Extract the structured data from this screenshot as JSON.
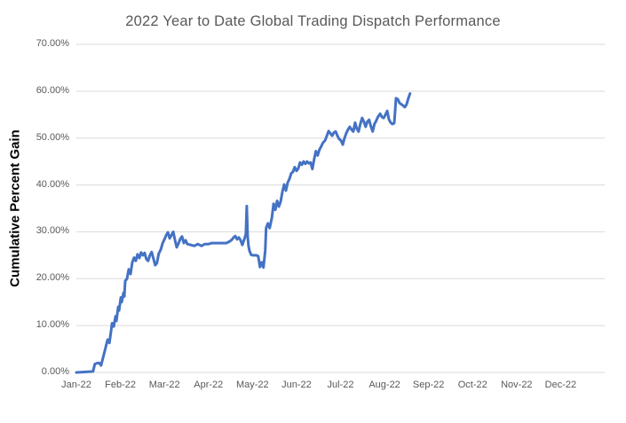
{
  "chart_data": {
    "type": "line",
    "title": "2022 Year to Date Global Trading Dispatch Performance",
    "xlabel": "",
    "ylabel": "Cumulative Percent Gain",
    "x_tick_labels": [
      "Jan-22",
      "Feb-22",
      "Mar-22",
      "Apr-22",
      "May-22",
      "Jun-22",
      "Jul-22",
      "Aug-22",
      "Sep-22",
      "Oct-22",
      "Nov-22",
      "Dec-22"
    ],
    "y_tick_labels": [
      "0.00%",
      "10.00%",
      "20.00%",
      "30.00%",
      "40.00%",
      "50.00%",
      "60.00%",
      "70.00%"
    ],
    "ylim": [
      0,
      70
    ],
    "xlim": [
      0,
      12
    ],
    "x_unit": "months since 2022-01-01 (0 = Jan-22 tick, 1 = Feb-22 tick)",
    "y_unit": "cumulative percent gain",
    "grid": "horizontal",
    "legend": "none",
    "colors": {
      "line": "#4472C4",
      "gridline": "#D9D9D9",
      "title": "#595959",
      "tick_labels": "#595959",
      "axis_title": "#000000",
      "background": "#FFFFFF"
    },
    "series": [
      {
        "name": "Cumulative Percent Gain",
        "points": [
          [
            0.0,
            0.0
          ],
          [
            0.38,
            0.2
          ],
          [
            0.42,
            1.8
          ],
          [
            0.48,
            2.0
          ],
          [
            0.52,
            2.0
          ],
          [
            0.56,
            1.5
          ],
          [
            0.63,
            4.0
          ],
          [
            0.67,
            5.5
          ],
          [
            0.71,
            7.0
          ],
          [
            0.75,
            6.3
          ],
          [
            0.79,
            9.0
          ],
          [
            0.81,
            10.5
          ],
          [
            0.85,
            9.8
          ],
          [
            0.89,
            12.0
          ],
          [
            0.91,
            11.0
          ],
          [
            0.95,
            14.0
          ],
          [
            0.97,
            13.2
          ],
          [
            1.01,
            16.0
          ],
          [
            1.03,
            15.0
          ],
          [
            1.07,
            17.0
          ],
          [
            1.09,
            16.2
          ],
          [
            1.11,
            19.5
          ],
          [
            1.15,
            20.0
          ],
          [
            1.19,
            22.0
          ],
          [
            1.23,
            21.0
          ],
          [
            1.27,
            23.5
          ],
          [
            1.31,
            24.5
          ],
          [
            1.35,
            23.8
          ],
          [
            1.39,
            25.2
          ],
          [
            1.43,
            24.4
          ],
          [
            1.47,
            25.6
          ],
          [
            1.51,
            25.0
          ],
          [
            1.55,
            25.5
          ],
          [
            1.59,
            24.2
          ],
          [
            1.63,
            23.8
          ],
          [
            1.67,
            25.0
          ],
          [
            1.71,
            25.7
          ],
          [
            1.75,
            24.3
          ],
          [
            1.79,
            22.9
          ],
          [
            1.83,
            23.3
          ],
          [
            1.87,
            25.3
          ],
          [
            1.92,
            26.3
          ],
          [
            1.96,
            27.6
          ],
          [
            2.0,
            28.4
          ],
          [
            2.04,
            29.3
          ],
          [
            2.08,
            29.9
          ],
          [
            2.12,
            28.6
          ],
          [
            2.16,
            29.3
          ],
          [
            2.2,
            30.0
          ],
          [
            2.24,
            28.2
          ],
          [
            2.28,
            26.7
          ],
          [
            2.32,
            27.5
          ],
          [
            2.36,
            28.5
          ],
          [
            2.4,
            29.0
          ],
          [
            2.44,
            27.6
          ],
          [
            2.48,
            28.2
          ],
          [
            2.52,
            27.4
          ],
          [
            2.6,
            27.2
          ],
          [
            2.68,
            27.0
          ],
          [
            2.76,
            27.4
          ],
          [
            2.84,
            27.0
          ],
          [
            2.92,
            27.4
          ],
          [
            3.0,
            27.4
          ],
          [
            3.08,
            27.6
          ],
          [
            3.17,
            27.6
          ],
          [
            3.25,
            27.6
          ],
          [
            3.33,
            27.6
          ],
          [
            3.41,
            27.6
          ],
          [
            3.49,
            28.0
          ],
          [
            3.53,
            28.3
          ],
          [
            3.57,
            28.8
          ],
          [
            3.61,
            29.1
          ],
          [
            3.65,
            28.4
          ],
          [
            3.69,
            28.8
          ],
          [
            3.73,
            28.2
          ],
          [
            3.77,
            27.2
          ],
          [
            3.81,
            28.3
          ],
          [
            3.85,
            29.5
          ],
          [
            3.87,
            35.5
          ],
          [
            3.89,
            29.0
          ],
          [
            3.91,
            27.0
          ],
          [
            3.93,
            26.0
          ],
          [
            3.97,
            25.1
          ],
          [
            4.01,
            25.0
          ],
          [
            4.05,
            25.0
          ],
          [
            4.09,
            25.0
          ],
          [
            4.13,
            24.8
          ],
          [
            4.17,
            22.5
          ],
          [
            4.21,
            23.5
          ],
          [
            4.25,
            22.4
          ],
          [
            4.29,
            26.0
          ],
          [
            4.31,
            30.8
          ],
          [
            4.35,
            31.8
          ],
          [
            4.39,
            30.8
          ],
          [
            4.44,
            33.0
          ],
          [
            4.48,
            36.0
          ],
          [
            4.52,
            34.7
          ],
          [
            4.56,
            36.6
          ],
          [
            4.6,
            35.4
          ],
          [
            4.64,
            36.5
          ],
          [
            4.68,
            38.5
          ],
          [
            4.72,
            40.1
          ],
          [
            4.76,
            38.8
          ],
          [
            4.8,
            40.5
          ],
          [
            4.84,
            41.3
          ],
          [
            4.88,
            42.5
          ],
          [
            4.92,
            42.8
          ],
          [
            4.96,
            43.8
          ],
          [
            5.0,
            43.0
          ],
          [
            5.04,
            43.5
          ],
          [
            5.08,
            44.8
          ],
          [
            5.12,
            44.3
          ],
          [
            5.16,
            45.0
          ],
          [
            5.2,
            44.5
          ],
          [
            5.24,
            45.0
          ],
          [
            5.28,
            44.6
          ],
          [
            5.32,
            44.8
          ],
          [
            5.36,
            43.4
          ],
          [
            5.4,
            45.5
          ],
          [
            5.44,
            47.2
          ],
          [
            5.48,
            46.3
          ],
          [
            5.52,
            47.5
          ],
          [
            5.56,
            48.2
          ],
          [
            5.6,
            49.0
          ],
          [
            5.65,
            49.5
          ],
          [
            5.69,
            50.5
          ],
          [
            5.73,
            51.5
          ],
          [
            5.77,
            51.0
          ],
          [
            5.81,
            50.5
          ],
          [
            5.85,
            51.2
          ],
          [
            5.89,
            51.4
          ],
          [
            5.93,
            50.5
          ],
          [
            5.97,
            49.8
          ],
          [
            6.01,
            49.5
          ],
          [
            6.05,
            48.6
          ],
          [
            6.09,
            50.0
          ],
          [
            6.13,
            51.0
          ],
          [
            6.17,
            51.8
          ],
          [
            6.21,
            52.4
          ],
          [
            6.25,
            51.8
          ],
          [
            6.29,
            51.4
          ],
          [
            6.33,
            53.3
          ],
          [
            6.37,
            52.0
          ],
          [
            6.41,
            51.4
          ],
          [
            6.45,
            53.0
          ],
          [
            6.49,
            54.3
          ],
          [
            6.53,
            53.5
          ],
          [
            6.57,
            52.4
          ],
          [
            6.61,
            53.5
          ],
          [
            6.65,
            53.9
          ],
          [
            6.69,
            52.5
          ],
          [
            6.73,
            51.4
          ],
          [
            6.77,
            53.0
          ],
          [
            6.81,
            53.7
          ],
          [
            6.85,
            54.5
          ],
          [
            6.9,
            55.2
          ],
          [
            6.94,
            54.5
          ],
          [
            6.98,
            54.3
          ],
          [
            7.02,
            55.0
          ],
          [
            7.06,
            55.8
          ],
          [
            7.1,
            54.0
          ],
          [
            7.14,
            53.3
          ],
          [
            7.18,
            53.0
          ],
          [
            7.22,
            53.2
          ],
          [
            7.26,
            58.5
          ],
          [
            7.3,
            58.3
          ],
          [
            7.34,
            57.5
          ],
          [
            7.4,
            57.1
          ],
          [
            7.46,
            56.6
          ],
          [
            7.5,
            57.2
          ],
          [
            7.54,
            58.5
          ],
          [
            7.58,
            59.5
          ]
        ]
      }
    ]
  }
}
